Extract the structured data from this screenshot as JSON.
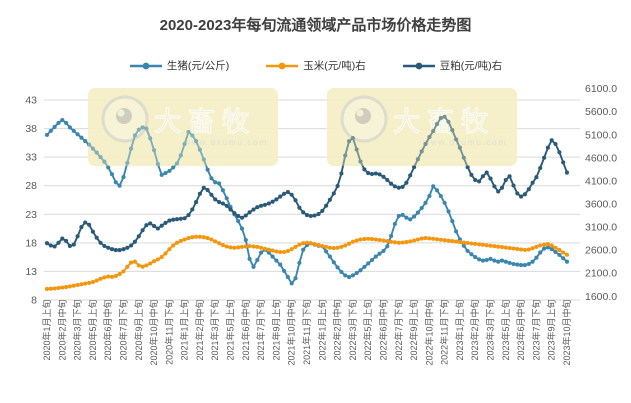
{
  "title": "2020-2023年每旬流通领域产品市场价格走势图",
  "watermark": {
    "brand": "大畜牧",
    "url": "www.dxumu.com"
  },
  "colors": {
    "pig": "#3A86AE",
    "corn": "#F2970F",
    "soybean_meal": "#2A5A78",
    "grid": "#D9D9D9",
    "axis_text": "#595959",
    "title_text": "#3F3F3F",
    "watermark_bg": "#F5EFC4",
    "watermark_text": "#DEDEDE",
    "watermark_url_text": "#D4D4D4",
    "logo_ring": "#D0D0D0",
    "logo_blob": "#B9B9B9"
  },
  "chart_data": {
    "type": "line",
    "title": "2020-2023年每旬流通领域产品市场价格走势图",
    "legend_position": "top",
    "grid": true,
    "marker": "circle",
    "left_axis": {
      "ticks": [
        8,
        13,
        18,
        23,
        28,
        33,
        38,
        43
      ],
      "range": [
        8,
        43
      ]
    },
    "right_axis": {
      "tick_labels": [
        "6100.0",
        "5600.0",
        "5100.0",
        "4600.0",
        "4100.0",
        "3600.0",
        "3100.0",
        "2600.0",
        "2100.0",
        "1600.0"
      ],
      "range": [
        1600,
        6100
      ]
    },
    "x_label_every": 4,
    "x_tick_labels": [
      "2020年1月上旬",
      "2020年2月中旬",
      "2020年3月下旬",
      "2020年5月上旬",
      "2020年6月中旬",
      "2020年7月下旬",
      "2020年9月上旬",
      "2020年10月中旬",
      "2020年11月下旬",
      "2021年1月上旬",
      "2021年2月中旬",
      "2021年3月下旬",
      "2021年5月上旬",
      "2021年6月中旬",
      "2021年7月下旬",
      "2021年9月上旬",
      "2021年10月中旬",
      "2021年11月下旬",
      "2022年1月上旬",
      "2022年2月中旬",
      "2022年3月下旬",
      "2022年5月上旬",
      "2022年6月中旬",
      "2022年7月下旬",
      "2022年9月上旬",
      "2022年10月中旬",
      "2022年11月下旬",
      "2023年1月上旬",
      "2023年2月中旬",
      "2023年3月下旬",
      "2023年5月上旬",
      "2023年6月中旬",
      "2023年7月下旬",
      "2023年9月上旬",
      "2023年10月中旬"
    ],
    "series": [
      {
        "name": "生猪(元/公斤)",
        "axis": "left",
        "color": "#3A86AE",
        "values": [
          36.9,
          37.6,
          38.3,
          39.0,
          39.5,
          39.0,
          38.2,
          37.6,
          37.0,
          36.4,
          35.8,
          35.2,
          34.5,
          33.8,
          33.0,
          32.2,
          31.2,
          30.0,
          28.6,
          28.0,
          29.5,
          32.0,
          34.5,
          36.8,
          37.8,
          38.2,
          38.0,
          36.3,
          34.2,
          31.8,
          29.9,
          30.2,
          30.6,
          31.2,
          31.9,
          33.3,
          35.3,
          37.4,
          36.8,
          35.8,
          34.3,
          32.6,
          30.8,
          29.3,
          28.6,
          28.4,
          27.2,
          25.8,
          24.3,
          23.0,
          21.8,
          20.5,
          18.5,
          15.2,
          13.8,
          15.0,
          16.3,
          16.8,
          16.3,
          15.6,
          14.9,
          14.2,
          13.1,
          12.0,
          10.9,
          11.8,
          14.5,
          16.8,
          17.6,
          17.9,
          17.7,
          17.5,
          17.4,
          16.5,
          15.6,
          14.6,
          13.7,
          12.9,
          12.3,
          12.0,
          12.3,
          12.7,
          13.2,
          13.8,
          14.4,
          15.0,
          15.6,
          16.1,
          16.6,
          17.4,
          19.2,
          21.3,
          22.7,
          22.9,
          22.4,
          22.1,
          22.6,
          23.3,
          24.1,
          25.0,
          26.2,
          27.9,
          27.2,
          26.2,
          25.0,
          23.5,
          21.8,
          20.0,
          18.6,
          17.5,
          16.6,
          16.0,
          15.5,
          15.1,
          14.9,
          15.0,
          15.2,
          14.9,
          14.7,
          14.9,
          14.7,
          14.5,
          14.3,
          14.2,
          14.1,
          14.1,
          14.3,
          14.7,
          15.4,
          16.3,
          17.0,
          17.2,
          16.9,
          16.4,
          15.9,
          15.3,
          14.7
        ]
      },
      {
        "name": "玉米(元/吨)右",
        "axis": "right",
        "color": "#F2970F",
        "values": [
          1760,
          1765,
          1770,
          1780,
          1790,
          1800,
          1815,
          1830,
          1845,
          1860,
          1875,
          1890,
          1910,
          1940,
          1980,
          2010,
          2030,
          2020,
          2040,
          2080,
          2140,
          2240,
          2330,
          2350,
          2270,
          2240,
          2270,
          2310,
          2360,
          2400,
          2450,
          2530,
          2620,
          2700,
          2760,
          2800,
          2830,
          2860,
          2880,
          2890,
          2890,
          2880,
          2860,
          2830,
          2790,
          2750,
          2710,
          2680,
          2660,
          2650,
          2660,
          2670,
          2680,
          2690,
          2680,
          2670,
          2650,
          2630,
          2610,
          2590,
          2570,
          2560,
          2560,
          2580,
          2620,
          2670,
          2720,
          2750,
          2760,
          2750,
          2730,
          2710,
          2690,
          2670,
          2650,
          2645,
          2650,
          2670,
          2700,
          2740,
          2780,
          2810,
          2830,
          2840,
          2845,
          2840,
          2830,
          2820,
          2810,
          2795,
          2780,
          2770,
          2760,
          2765,
          2775,
          2790,
          2810,
          2830,
          2850,
          2860,
          2855,
          2845,
          2835,
          2825,
          2815,
          2805,
          2795,
          2785,
          2775,
          2765,
          2755,
          2745,
          2735,
          2725,
          2715,
          2705,
          2695,
          2685,
          2675,
          2665,
          2655,
          2645,
          2635,
          2625,
          2615,
          2605,
          2615,
          2640,
          2670,
          2700,
          2720,
          2730,
          2700,
          2650,
          2600,
          2550,
          2500
        ]
      },
      {
        "name": "豆粕(元/吨)右",
        "axis": "right",
        "color": "#2A5A78",
        "values": [
          2750,
          2700,
          2680,
          2760,
          2850,
          2800,
          2690,
          2720,
          2900,
          3100,
          3200,
          3150,
          3000,
          2870,
          2760,
          2690,
          2650,
          2620,
          2600,
          2600,
          2620,
          2650,
          2700,
          2780,
          2900,
          3030,
          3140,
          3180,
          3120,
          3070,
          3130,
          3190,
          3240,
          3260,
          3270,
          3280,
          3290,
          3360,
          3480,
          3640,
          3820,
          3950,
          3900,
          3800,
          3700,
          3640,
          3610,
          3560,
          3480,
          3400,
          3340,
          3300,
          3350,
          3420,
          3480,
          3530,
          3560,
          3580,
          3610,
          3650,
          3700,
          3760,
          3820,
          3860,
          3800,
          3680,
          3520,
          3420,
          3360,
          3340,
          3350,
          3380,
          3450,
          3560,
          3690,
          3830,
          3990,
          4260,
          4650,
          4960,
          5030,
          4780,
          4520,
          4350,
          4270,
          4250,
          4260,
          4240,
          4190,
          4120,
          4040,
          3980,
          3950,
          3970,
          4060,
          4220,
          4400,
          4570,
          4740,
          4900,
          5050,
          5180,
          5330,
          5460,
          5490,
          5380,
          5200,
          5000,
          4820,
          4600,
          4400,
          4230,
          4120,
          4090,
          4200,
          4280,
          4150,
          3980,
          3870,
          3950,
          4120,
          4200,
          4000,
          3830,
          3760,
          3810,
          3920,
          4060,
          4180,
          4380,
          4600,
          4820,
          4980,
          4900,
          4720,
          4500,
          4280
        ]
      }
    ]
  }
}
